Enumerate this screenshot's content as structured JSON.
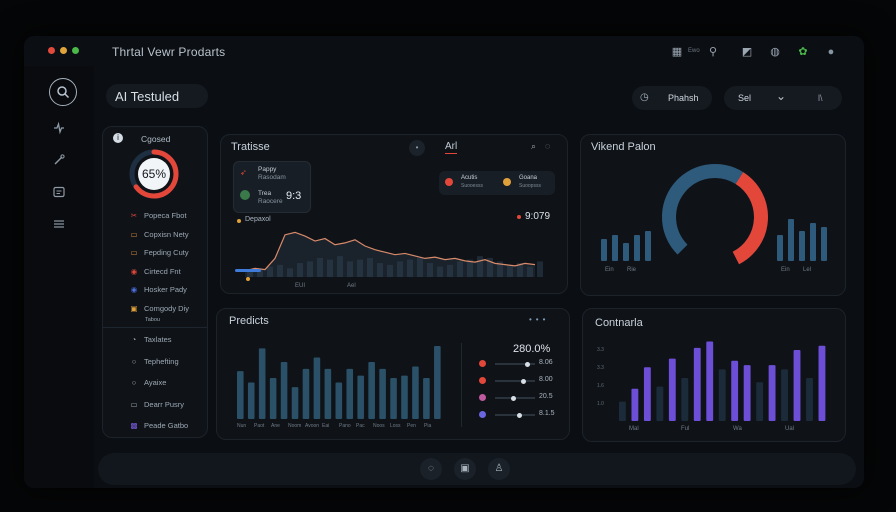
{
  "window": {
    "title": "Thrtal Vewr Prodarts",
    "top_icons": [
      {
        "name": "grid-icon",
        "glyph": "▦"
      },
      {
        "name": "filter-icon",
        "glyph": "⚲"
      },
      {
        "name": "tag-icon",
        "glyph": "◩"
      },
      {
        "name": "globe-icon",
        "glyph": "◍"
      },
      {
        "name": "leaf-icon",
        "glyph": "✿"
      },
      {
        "name": "user-icon",
        "glyph": "●"
      }
    ],
    "top_icon_label": "Ewo"
  },
  "colors": {
    "accent_red": "#e2473a",
    "accent_blue": "#3b6a8f",
    "bar_teal": "#2e5a72",
    "bar_purple": "#6c4fd6",
    "bar_dark": "#1b2b3a"
  },
  "sidebar": {
    "icons": [
      "search-icon",
      "pulse-icon",
      "wand-icon",
      "id-card-icon",
      "menu-icon"
    ]
  },
  "header": {
    "title": "AI Testuled",
    "right_pill_icon": "clock-icon",
    "right_pill_label": "Phahsh",
    "select_label": "Sel",
    "select_icon": "chevron-down-icon",
    "extra": "l\\"
  },
  "left_panel": {
    "header_label": "Cgosed",
    "gauge_value": "65%",
    "gauge_fraction": 0.65,
    "top_items": [
      {
        "icon": "✂",
        "label": "Popeca Fbot",
        "color": "#e2473a"
      },
      {
        "icon": "▭",
        "label": "Copxisn Nety",
        "color": "#d98a3a"
      },
      {
        "icon": "▭",
        "label": "Fepding Cuty",
        "color": "#d98a3a"
      },
      {
        "icon": "◉",
        "label": "Cirtecd Fnt",
        "color": "#e2473a"
      },
      {
        "icon": "◉",
        "label": "Hosker Pady",
        "color": "#4a6fe0"
      },
      {
        "icon": "▣",
        "label": "Comgody Diy",
        "color": "#e0a03a"
      }
    ],
    "top_items_sub": "Tabou",
    "bottom_items": [
      {
        "icon": "◔",
        "label": "Taxlates"
      },
      {
        "icon": "○",
        "label": "Tephefting"
      },
      {
        "icon": "○",
        "label": "Ayaixe"
      },
      {
        "icon": "▭",
        "label": "Dearr Pusry"
      },
      {
        "icon": "▩",
        "label": "Peade Gatbo"
      }
    ]
  },
  "trends_panel": {
    "title": "Tratisse",
    "subtab": "Arl",
    "card1": {
      "line1": "Pappy",
      "line2": "Rasodam",
      "line3": "Trea",
      "line4": "Raocere",
      "value": "9:3"
    },
    "legend_label": "Depaxol",
    "chips": [
      {
        "title": "Acutis",
        "sub": "Suooesss"
      },
      {
        "title": "Goana",
        "sub": "Suoopsss"
      }
    ],
    "readout": "9:079",
    "x_labels": [
      "EUI",
      "Ael",
      "",
      "",
      ""
    ],
    "chart_data": {
      "type": "area",
      "title": "Tratisse",
      "values": [
        10,
        14,
        12,
        30,
        68,
        72,
        66,
        58,
        62,
        52,
        55,
        60,
        50,
        44,
        40,
        36,
        38,
        34,
        30,
        32,
        28,
        30,
        26,
        24,
        28,
        22,
        20,
        18,
        22,
        20
      ],
      "bars": [
        8,
        10,
        12,
        14,
        10,
        16,
        18,
        22,
        20,
        24,
        18,
        20,
        22,
        16,
        14,
        18,
        20,
        22,
        16,
        12,
        14,
        18,
        20,
        24,
        22,
        18,
        14,
        16,
        12,
        18
      ],
      "ylim": [
        0,
        100
      ]
    }
  },
  "vendor_panel": {
    "title": "Vikend Palon",
    "left_labels": [
      "Ein",
      "Rie"
    ],
    "right_labels": [
      "Ein",
      "Lel"
    ],
    "chart_data": {
      "type": "pie",
      "title": "Vikend Palon",
      "slices": [
        {
          "name": "red",
          "value": 0.42
        },
        {
          "name": "blue",
          "value": 0.58
        }
      ],
      "left_bars": [
        22,
        26,
        18,
        26,
        30
      ],
      "right_bars": [
        26,
        42,
        30,
        38,
        34
      ]
    }
  },
  "predicts_panel": {
    "title": "Predicts",
    "headline": "280.0%",
    "x_labels": [
      "Nun",
      "Paot",
      "Ane",
      "Noom",
      "Avoon",
      "Eai",
      "Pano",
      "Pac",
      "Noos",
      "Loss",
      "Pen",
      "Pia"
    ],
    "chart_data": {
      "type": "bar",
      "title": "Predicts",
      "values": [
        42,
        32,
        62,
        36,
        50,
        28,
        44,
        54,
        44,
        32,
        44,
        38,
        50,
        44,
        36,
        38,
        46,
        36,
        64
      ],
      "ylim": [
        0,
        70
      ]
    },
    "sliders": [
      {
        "label": "8.06",
        "value": 0.8,
        "color": "#e2473a"
      },
      {
        "label": "8.00",
        "value": 0.7,
        "color": "#e2473a"
      },
      {
        "label": "20.5",
        "value": 0.45,
        "color": "#c05aa0"
      },
      {
        "label": "8.1.5",
        "value": 0.6,
        "color": "#6a66e0"
      }
    ]
  },
  "contracts_panel": {
    "title": "Contnarla",
    "y_labels": [
      "3.3",
      "3.3",
      "1.6",
      "1.0"
    ],
    "x_labels": [
      "Mal",
      "Ful",
      "Wa",
      "Ual"
    ],
    "chart_data": {
      "type": "bar",
      "title": "Contnarla",
      "values": [
        18,
        30,
        50,
        32,
        58,
        40,
        68,
        74,
        48,
        56,
        52,
        36,
        52,
        48,
        66,
        40,
        70
      ],
      "highlight": [
        false,
        true,
        true,
        false,
        true,
        false,
        true,
        true,
        false,
        true,
        true,
        false,
        true,
        false,
        true,
        false,
        true
      ],
      "ylim": [
        0,
        80
      ]
    }
  },
  "footer": {
    "buttons": [
      {
        "name": "refresh-icon",
        "glyph": "◌"
      },
      {
        "name": "save-icon",
        "glyph": "▣"
      },
      {
        "name": "user-plus-icon",
        "glyph": "♙"
      }
    ]
  }
}
